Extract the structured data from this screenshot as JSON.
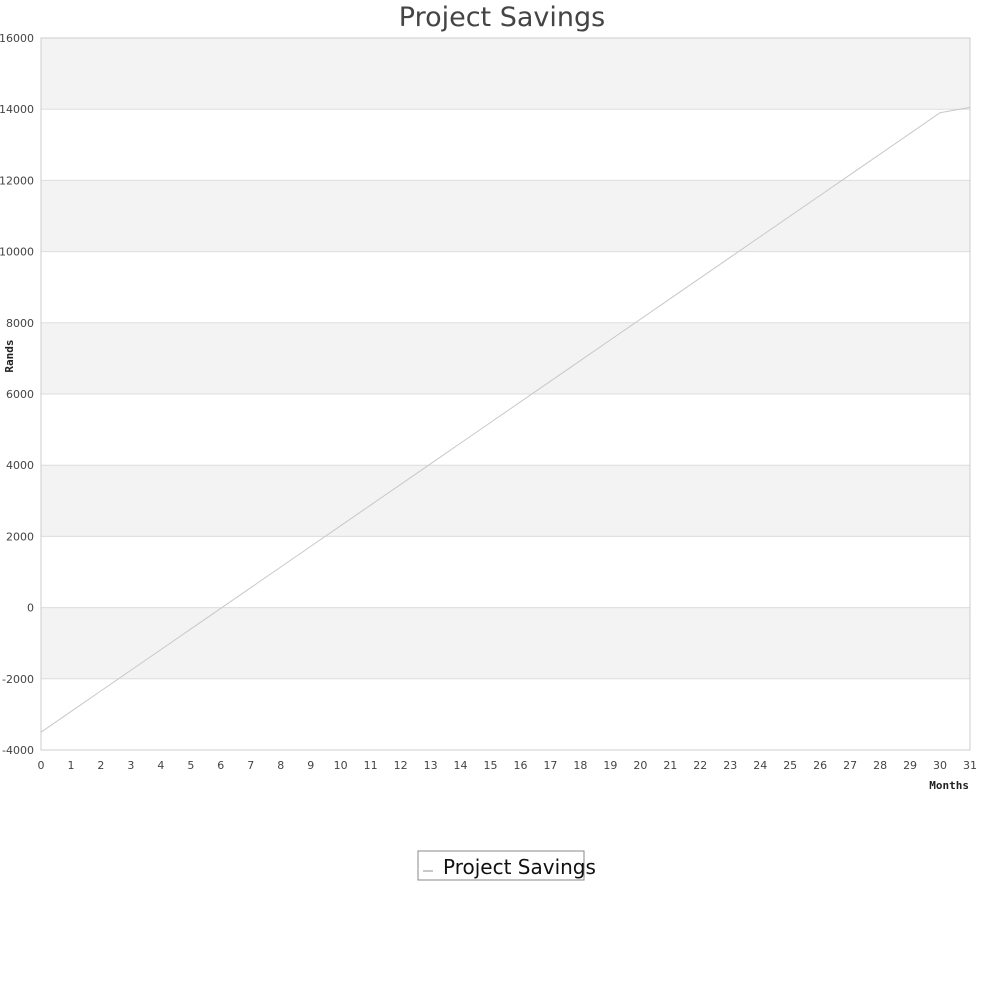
{
  "chart_data": {
    "type": "line",
    "title": "Project Savings",
    "xlabel": "Months",
    "ylabel": "Rands",
    "xlim": [
      0,
      31
    ],
    "ylim": [
      -4000,
      16000
    ],
    "x_ticks": [
      0,
      1,
      2,
      3,
      4,
      5,
      6,
      7,
      8,
      9,
      10,
      11,
      12,
      13,
      14,
      15,
      16,
      17,
      18,
      19,
      20,
      21,
      22,
      23,
      24,
      25,
      26,
      27,
      28,
      29,
      30,
      31
    ],
    "y_ticks": [
      -4000,
      -2000,
      0,
      2000,
      4000,
      6000,
      8000,
      10000,
      12000,
      14000,
      16000
    ],
    "grid": "horizontal alternating bands",
    "legend_position": "bottom-center",
    "series": [
      {
        "name": "Project Savings",
        "color": "#c8c8c8",
        "x": [
          0,
          1,
          2,
          3,
          4,
          5,
          6,
          7,
          8,
          9,
          10,
          11,
          12,
          13,
          14,
          15,
          16,
          17,
          18,
          19,
          20,
          21,
          22,
          23,
          24,
          25,
          26,
          27,
          28,
          29,
          30,
          31
        ],
        "values": [
          -3500,
          -2920,
          -2340,
          -1760,
          -1180,
          -600,
          -20,
          560,
          1140,
          1720,
          2300,
          2880,
          3460,
          4040,
          4620,
          5200,
          5780,
          6360,
          6940,
          7520,
          8100,
          8680,
          9260,
          9840,
          10420,
          11000,
          11580,
          12160,
          12740,
          13320,
          13900,
          14050
        ]
      }
    ]
  },
  "colors": {
    "band": "#f3f3f3",
    "gridline": "#dddddd",
    "axis": "#cccccc",
    "series_line": "#c8c8c8"
  }
}
